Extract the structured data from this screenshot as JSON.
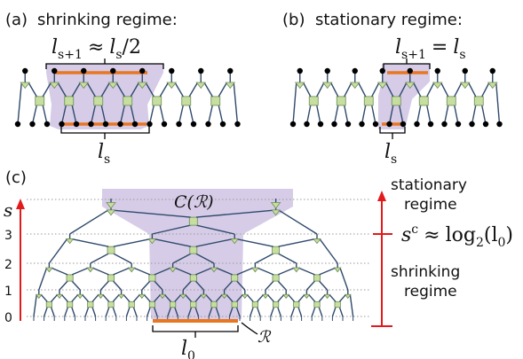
{
  "panels": {
    "a": {
      "tag": "(a)",
      "caption": "shrinking regime:",
      "top_formula": {
        "lhs_base": "l",
        "lhs_sub": "s+1",
        "rel": "≈",
        "rhs_base": "l",
        "rhs_sub": "s",
        "rhs_tail": "/2"
      },
      "bottom_label": {
        "base": "l",
        "sub": "s"
      }
    },
    "b": {
      "tag": "(b)",
      "caption": "stationary regime:",
      "top_formula": {
        "lhs_base": "l",
        "lhs_sub": "s+1",
        "rel": "=",
        "rhs_base": "l",
        "rhs_sub": "s",
        "rhs_tail": ""
      },
      "bottom_label": {
        "base": "l",
        "sub": "s"
      }
    },
    "c": {
      "tag": "(c)",
      "axis_label": "s",
      "levels": [
        "0",
        "1",
        "2",
        "3"
      ],
      "light_cone_label": "C(ℛ)",
      "region_label": "ℛ",
      "bottom_label": {
        "base": "l",
        "sub": "0"
      },
      "right": {
        "top_text": [
          "stationary",
          "regime"
        ],
        "crossover": {
          "base": "s",
          "sup": "c",
          "rel": "≈",
          "func": "log",
          "func_sub": "2",
          "arg": "(l",
          "arg_sub": "0",
          "arg_tail": ")"
        },
        "bottom_text": [
          "shrinking",
          "regime"
        ]
      }
    }
  },
  "colors": {
    "light_cone": "#cfc3e3",
    "interval": "#e87722",
    "wire": "#2f4a6b",
    "tensor_fill": "#c6dfa0",
    "tensor_stroke": "#6f8a55",
    "arrow": "#e31a1c",
    "dotted": "#9a9a9a",
    "dot": "#000000"
  }
}
